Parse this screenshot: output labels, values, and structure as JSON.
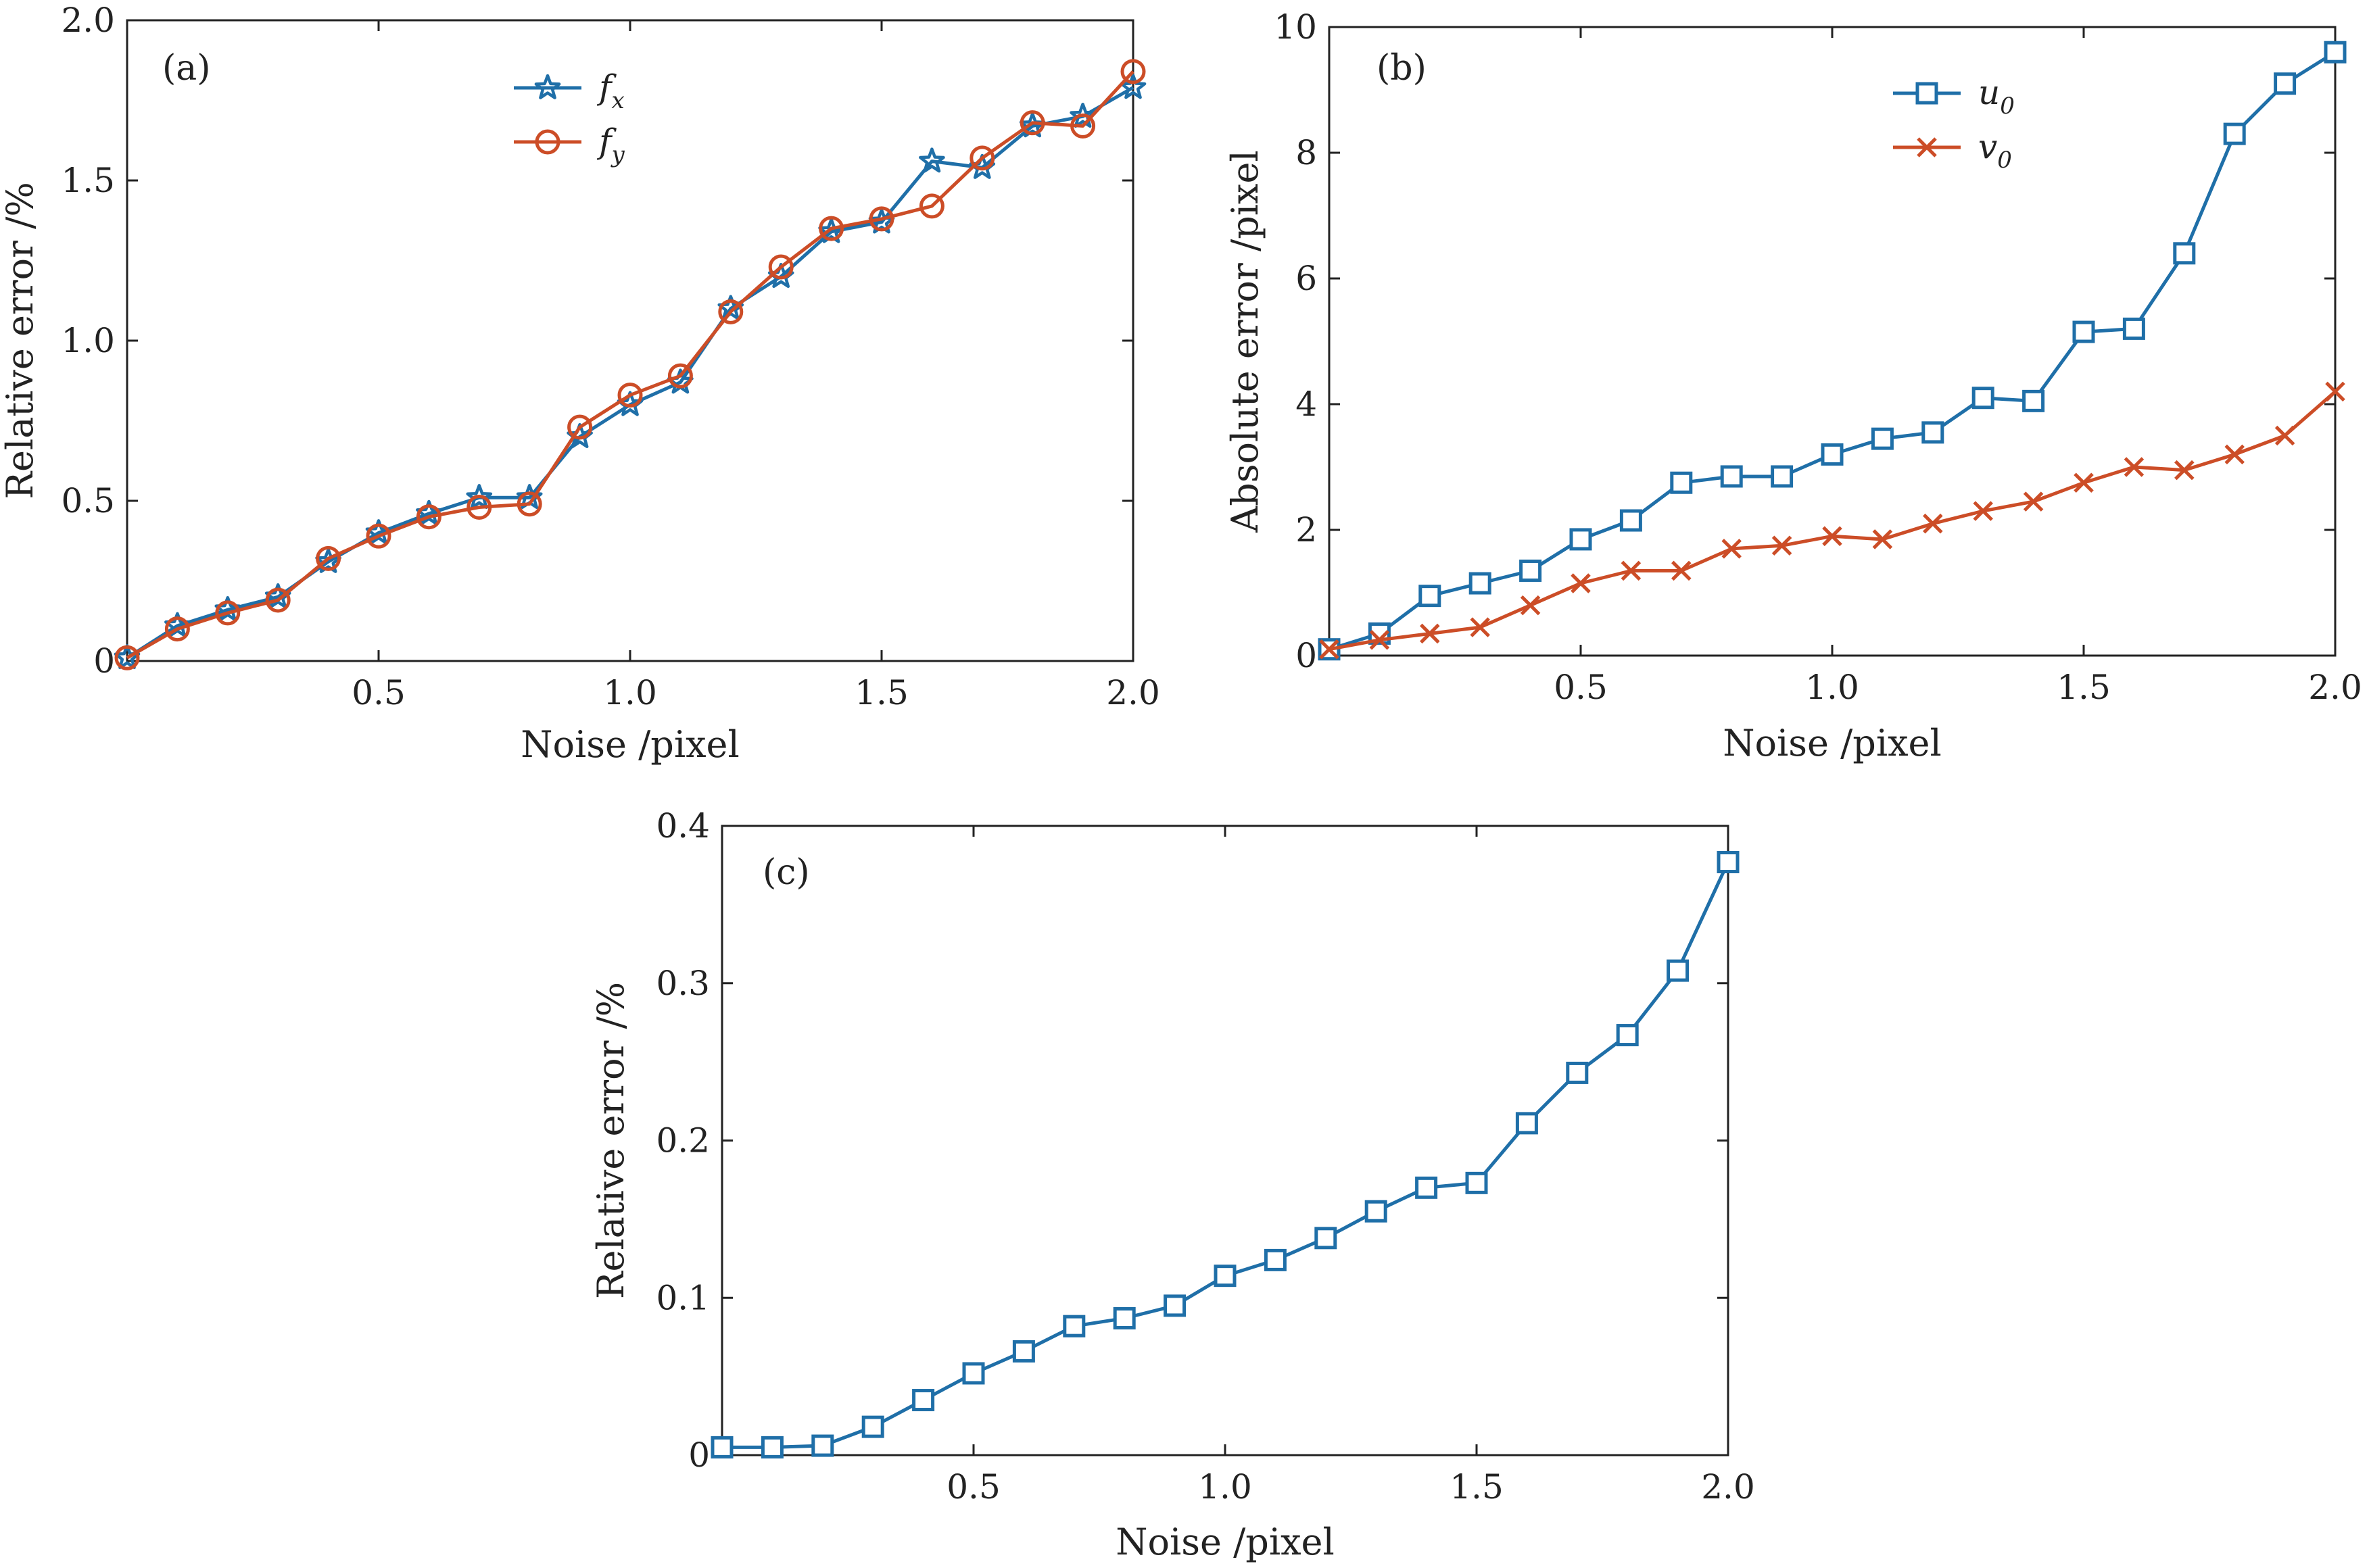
{
  "chart_data": [
    {
      "id": "a",
      "type": "line",
      "panel_label": "(a)",
      "xlabel": "Noise /pixel",
      "ylabel": "Relative error /%",
      "xlim": [
        0,
        2.0
      ],
      "ylim": [
        0,
        2.0
      ],
      "xticks": [
        "0.5",
        "1.0",
        "1.5",
        "2.0"
      ],
      "xtick_values": [
        0.5,
        1.0,
        1.5,
        2.0
      ],
      "yticks": [
        "0",
        "0.5",
        "1.0",
        "1.5",
        "2.0"
      ],
      "ytick_values": [
        0,
        0.5,
        1.0,
        1.5,
        2.0
      ],
      "x": [
        0,
        0.1,
        0.2,
        0.3,
        0.4,
        0.5,
        0.6,
        0.7,
        0.8,
        0.9,
        1.0,
        1.1,
        1.2,
        1.3,
        1.4,
        1.5,
        1.6,
        1.7,
        1.8,
        1.9,
        2.0
      ],
      "legend_position": "top-center",
      "series": [
        {
          "name": "f",
          "sub": "x",
          "color": "#1f6fa8",
          "marker": "star",
          "values": [
            0.01,
            0.11,
            0.16,
            0.2,
            0.31,
            0.4,
            0.46,
            0.51,
            0.51,
            0.7,
            0.8,
            0.87,
            1.1,
            1.2,
            1.34,
            1.37,
            1.56,
            1.54,
            1.67,
            1.7,
            1.79
          ]
        },
        {
          "name": "f",
          "sub": "y",
          "color": "#cc4d27",
          "marker": "circle",
          "values": [
            0.01,
            0.1,
            0.15,
            0.19,
            0.32,
            0.39,
            0.45,
            0.48,
            0.49,
            0.73,
            0.83,
            0.89,
            1.09,
            1.23,
            1.35,
            1.38,
            1.42,
            1.57,
            1.68,
            1.67,
            1.84
          ]
        }
      ]
    },
    {
      "id": "b",
      "type": "line",
      "panel_label": "(b)",
      "xlabel": "Noise /pixel",
      "ylabel": "Absolute error /pixel",
      "xlim": [
        0,
        2.0
      ],
      "ylim": [
        0,
        10
      ],
      "xticks": [
        "0.5",
        "1.0",
        "1.5",
        "2.0"
      ],
      "xtick_values": [
        0.5,
        1.0,
        1.5,
        2.0
      ],
      "yticks": [
        "0",
        "2",
        "4",
        "6",
        "8",
        "10"
      ],
      "ytick_values": [
        0,
        2,
        4,
        6,
        8,
        10
      ],
      "x": [
        0,
        0.1,
        0.2,
        0.3,
        0.4,
        0.5,
        0.6,
        0.7,
        0.8,
        0.9,
        1.0,
        1.1,
        1.2,
        1.3,
        1.4,
        1.5,
        1.6,
        1.7,
        1.8,
        1.9,
        2.0
      ],
      "legend_position": "top-right",
      "series": [
        {
          "name": "u",
          "sub": "0",
          "color": "#1f6fa8",
          "marker": "square",
          "values": [
            0.1,
            0.35,
            0.95,
            1.15,
            1.35,
            1.85,
            2.15,
            2.75,
            2.85,
            2.85,
            3.2,
            3.45,
            3.55,
            4.1,
            4.05,
            5.15,
            5.2,
            6.4,
            8.3,
            9.1,
            9.6
          ]
        },
        {
          "name": "v",
          "sub": "0",
          "color": "#cc4d27",
          "marker": "x",
          "values": [
            0.1,
            0.25,
            0.35,
            0.45,
            0.8,
            1.15,
            1.35,
            1.35,
            1.7,
            1.75,
            1.9,
            1.85,
            2.1,
            2.3,
            2.45,
            2.75,
            3.0,
            2.95,
            3.2,
            3.5,
            4.2
          ]
        }
      ]
    },
    {
      "id": "c",
      "type": "line",
      "panel_label": "(c)",
      "xlabel": "Noise /pixel",
      "ylabel": "Relative error /%",
      "xlim": [
        0,
        2.0
      ],
      "ylim": [
        0,
        0.4
      ],
      "xticks": [
        "0.5",
        "1.0",
        "1.5",
        "2.0"
      ],
      "xtick_values": [
        0.5,
        1.0,
        1.5,
        2.0
      ],
      "yticks": [
        "0",
        "0.1",
        "0.2",
        "0.3",
        "0.4"
      ],
      "ytick_values": [
        0,
        0.1,
        0.2,
        0.3,
        0.4
      ],
      "x": [
        0,
        0.1,
        0.2,
        0.3,
        0.4,
        0.5,
        0.6,
        0.7,
        0.8,
        0.9,
        1.0,
        1.1,
        1.2,
        1.3,
        1.4,
        1.5,
        1.6,
        1.7,
        1.8,
        1.9,
        2.0
      ],
      "series": [
        {
          "name": "",
          "sub": "",
          "color": "#1f6fa8",
          "marker": "square",
          "values": [
            0.005,
            0.005,
            0.006,
            0.018,
            0.035,
            0.052,
            0.066,
            0.082,
            0.087,
            0.095,
            0.114,
            0.124,
            0.138,
            0.155,
            0.17,
            0.173,
            0.211,
            0.243,
            0.267,
            0.308,
            0.377
          ]
        }
      ]
    }
  ]
}
